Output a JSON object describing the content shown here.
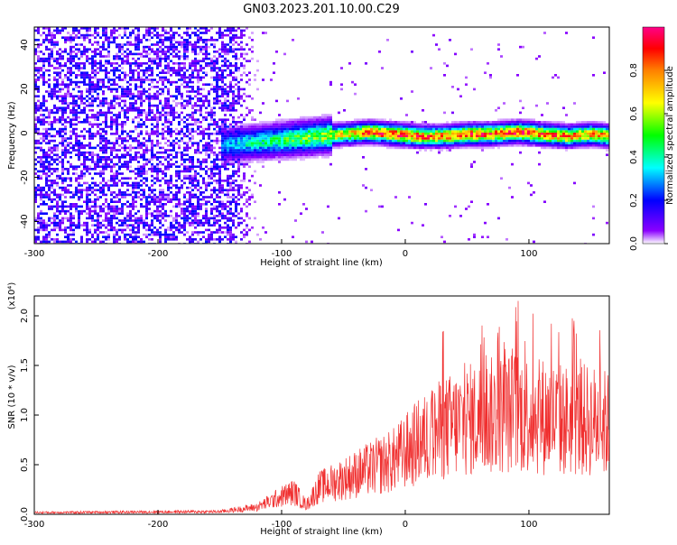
{
  "title": "GN03.2023.201.10.00.C29",
  "chart_data": [
    {
      "type": "heatmap",
      "xlabel": "Height of straight line (km)",
      "ylabel": "Frequency (Hz)",
      "xlim": [
        -300,
        165
      ],
      "ylim": [
        -50,
        48
      ],
      "xticks": [
        -300,
        -200,
        -100,
        0,
        100
      ],
      "yticks": [
        -40,
        -20,
        0,
        20,
        40
      ],
      "colorbar": {
        "label": "Normalized spectral amplitude",
        "range": [
          0,
          1
        ],
        "ticks": [
          "0.0",
          "0.2",
          "0.4",
          "0.6",
          "0.8"
        ],
        "colormap": [
          "#ffffff",
          "#7a00ff",
          "#0000ff",
          "#00ffff",
          "#00ff00",
          "#ffff00",
          "#ff8000",
          "#ff0000",
          "#ff00aa"
        ]
      },
      "signal_trace": {
        "x": [
          -150,
          -130,
          -110,
          -90,
          -70,
          -50,
          -30,
          -10,
          10,
          30,
          50,
          70,
          90,
          110,
          130,
          150,
          165
        ],
        "y": [
          -5,
          -4,
          -3,
          -2,
          -1,
          0,
          1,
          0,
          -1,
          -1,
          0,
          0,
          1,
          0,
          -1,
          0,
          -1
        ],
        "peak_amplitude": [
          0.3,
          0.4,
          0.45,
          0.55,
          0.6,
          0.75,
          0.9,
          0.95,
          0.9,
          0.85,
          0.95,
          0.9,
          0.95,
          0.9,
          0.85,
          0.85,
          0.8
        ]
      },
      "noise_region": {
        "x_range": [
          -300,
          -120
        ],
        "amplitude": 0.15
      }
    },
    {
      "type": "line",
      "xlabel": "Height of straight line (km)",
      "ylabel": "SNR (10 * v/v)",
      "multiplier": "(x10⁴)",
      "xlim": [
        -300,
        165
      ],
      "ylim": [
        0,
        2.2
      ],
      "xticks": [
        -300,
        -200,
        -100,
        0,
        100
      ],
      "yticks": [
        "0.0",
        "0.5",
        "1.0",
        "1.5",
        "2.0"
      ],
      "color": "#f03030",
      "envelope": {
        "x": [
          -300,
          -150,
          -120,
          -100,
          -90,
          -80,
          -70,
          -50,
          -30,
          -10,
          10,
          30,
          50,
          70,
          90,
          110,
          130,
          150,
          165
        ],
        "y": [
          0.02,
          0.03,
          0.08,
          0.2,
          0.25,
          0.1,
          0.3,
          0.4,
          0.5,
          0.6,
          0.8,
          0.95,
          1.05,
          1.1,
          1.15,
          1.1,
          1.05,
          1.05,
          1.0
        ]
      }
    }
  ]
}
